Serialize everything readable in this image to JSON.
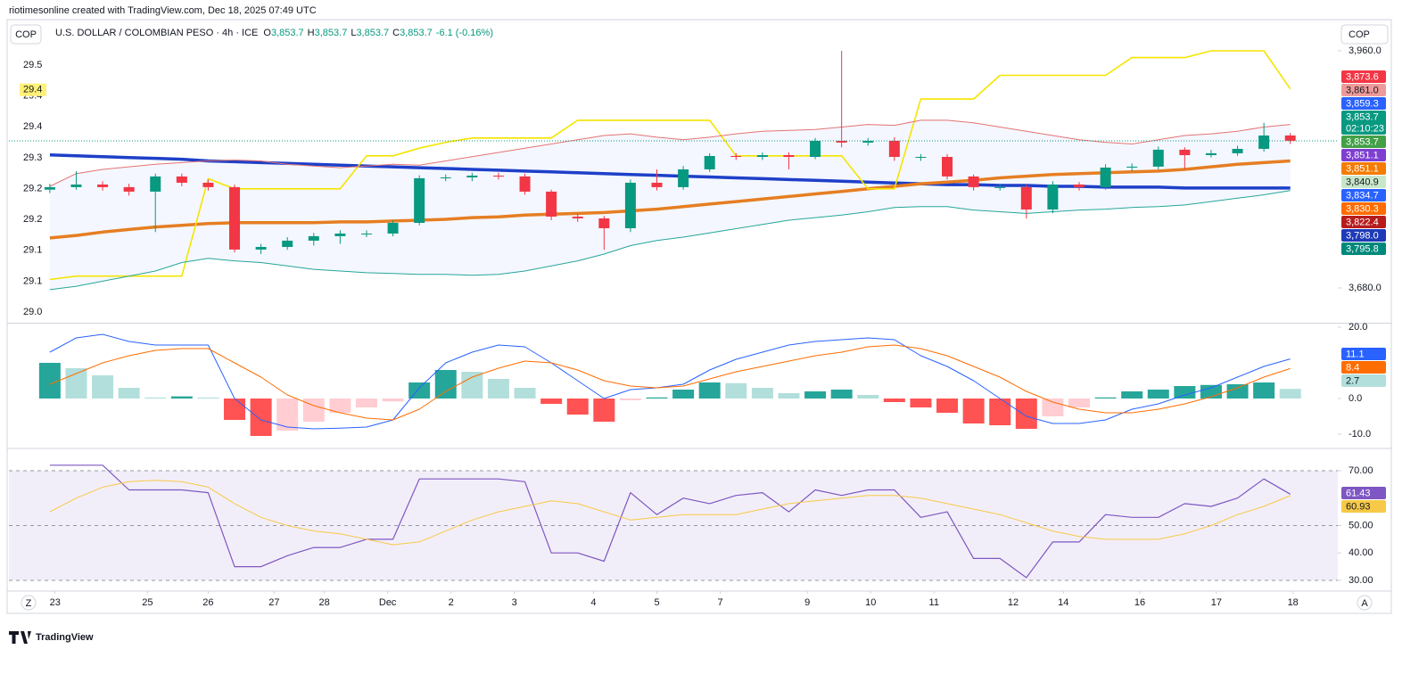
{
  "header": {
    "credit": "riotimesonline created with TradingView.com, Dec 18, 2025 07:49 UTC",
    "symbol_box": "COP",
    "instrument": "U.S. DOLLAR / COLOMBIAN PESO · 4h · ICE",
    "ohlc": [
      {
        "key": "O",
        "value": "3,853.7"
      },
      {
        "key": "H",
        "value": "3,853.7"
      },
      {
        "key": "L",
        "value": "3,853.7"
      },
      {
        "key": "C",
        "value": "3,853.7"
      }
    ],
    "change": "-6.1 (-0.16%)",
    "currency_box": "COP"
  },
  "footer": {
    "brand": "TradingView",
    "left_button": "Z",
    "right_button": "A"
  },
  "chart_data": [
    {
      "type": "candlestick",
      "xlim": [
        -1.55,
        48.8
      ],
      "ylim": [
        3641,
        3972.6
      ],
      "yticks": [
        {
          "value": 3680,
          "label": "3,680.0"
        },
        {
          "value": 3960,
          "label": "3,960.0"
        }
      ],
      "ylim_left": [
        28.982,
        29.5505
      ],
      "yticks_left": [
        29.5,
        {
          "value": 29.4375,
          "label": "29.4"
        },
        {
          "value": 29.375,
          "label": "29.4"
        },
        {
          "value": 29.3125,
          "label": "29.3"
        },
        {
          "value": 29.25,
          "label": "29.2"
        },
        {
          "value": 29.1875,
          "label": "29.2"
        },
        {
          "value": 29.125,
          "label": "29.1"
        },
        {
          "value": 29.0625,
          "label": "29.1"
        },
        {
          "value": 29,
          "label": "29.0"
        }
      ],
      "left_marker": {
        "value": 29.45,
        "label": "29.4",
        "color": "#fff176"
      },
      "up_color": "#089981",
      "down_color": "#f23645",
      "band_color": "#2962ff",
      "open": [
        3796.0,
        3799.0,
        3802.1,
        3799.0,
        3793.7,
        3811.6,
        3804.2,
        3799.0,
        3725.3,
        3728.4,
        3735.8,
        3741.1,
        3744.2,
        3744.2,
        3756.8,
        3809.5,
        3810.5,
        3812.6,
        3811.6,
        3793.7,
        3764.2,
        3762.1,
        3750.5,
        3804.2,
        3799.0,
        3820.0,
        3835.8,
        3834.7,
        3836.8,
        3834.7,
        3853.7,
        3851.6,
        3853.7,
        3834.7,
        3834.7,
        3811.6,
        3799.0,
        3799.0,
        3772.6,
        3802.1,
        3799.0,
        3822.1,
        3823.2,
        3843.2,
        3836.8,
        3839.0,
        3844.2,
        3860.0
      ],
      "high": [
        3803,
        3818,
        3806,
        3803,
        3815,
        3815,
        3808,
        3802,
        3732,
        3740,
        3745,
        3748,
        3748,
        3760,
        3813,
        3814,
        3816,
        3816,
        3815,
        3796,
        3768,
        3765,
        3808,
        3820,
        3824,
        3839,
        3839,
        3840,
        3840,
        3857,
        3960,
        3857,
        3858,
        3838,
        3838,
        3814,
        3803,
        3802,
        3806,
        3805,
        3826,
        3827,
        3847,
        3846,
        3843,
        3848,
        3875,
        3863
      ],
      "low": [
        3792,
        3796,
        3795,
        3789,
        3746,
        3800,
        3795,
        3722,
        3720,
        3725,
        3730,
        3732,
        3740,
        3741,
        3754,
        3806,
        3806,
        3808,
        3790,
        3760,
        3758,
        3725,
        3746,
        3795,
        3796,
        3817,
        3831,
        3831,
        3820,
        3832,
        3846,
        3848,
        3830,
        3830,
        3808,
        3795,
        3795,
        3762,
        3768,
        3795,
        3796,
        3818,
        3820,
        3820,
        3834,
        3836,
        3841,
        3850
      ],
      "close": [
        3799.0,
        3802.1,
        3799.0,
        3793.7,
        3811.6,
        3804.2,
        3799.0,
        3725.3,
        3728.4,
        3735.8,
        3741.1,
        3744.2,
        3744.2,
        3756.8,
        3809.5,
        3810.5,
        3812.6,
        3811.6,
        3793.7,
        3764.2,
        3762.1,
        3750.5,
        3804.2,
        3799.0,
        3820.0,
        3835.8,
        3834.7,
        3836.8,
        3834.7,
        3853.7,
        3851.6,
        3853.7,
        3834.7,
        3834.7,
        3811.6,
        3799.0,
        3799.0,
        3772.6,
        3802.1,
        3799.0,
        3822.1,
        3823.2,
        3843.2,
        3836.8,
        3839.0,
        3844.2,
        3860.0,
        3853.7
      ],
      "overlays": [
        {
          "color": "#1e40c8",
          "width": 3.5,
          "values": [
            3837,
            3836,
            3835,
            3834,
            3833,
            3832,
            3830,
            3829,
            3828,
            3827,
            3826,
            3825,
            3824,
            3823,
            3822,
            3821,
            3820,
            3819,
            3818,
            3817,
            3816,
            3815,
            3814,
            3813,
            3812,
            3811,
            3810,
            3809,
            3808,
            3807,
            3806,
            3805,
            3804,
            3803,
            3802,
            3802,
            3801,
            3801,
            3800,
            3800,
            3799,
            3799,
            3799,
            3798,
            3798,
            3798,
            3798,
            3798
          ]
        },
        {
          "color": "#e67e22",
          "width": 3.5,
          "values": [
            3739,
            3742,
            3746,
            3749,
            3752,
            3754,
            3756,
            3757,
            3757,
            3757,
            3757,
            3758,
            3758,
            3759,
            3760,
            3761,
            3763,
            3764,
            3766,
            3767,
            3768,
            3769,
            3771,
            3773,
            3776,
            3779,
            3782,
            3785,
            3788,
            3791,
            3794,
            3797,
            3800,
            3803,
            3805,
            3807,
            3810,
            3812,
            3814,
            3815,
            3816,
            3817,
            3818,
            3820,
            3823,
            3826,
            3828,
            3830
          ]
        },
        {
          "color": "#f5e400",
          "width": 1.6,
          "values": [
            3690,
            3694,
            3694,
            3694,
            3694,
            3694,
            3809,
            3797,
            3797,
            3797,
            3797,
            3797,
            3836,
            3836,
            3845,
            3852,
            3857,
            3857,
            3857,
            3857,
            3878,
            3878,
            3878,
            3878,
            3878,
            3878,
            3836,
            3836,
            3836,
            3836,
            3836,
            3797,
            3797,
            3903,
            3903,
            3903,
            3931,
            3931,
            3931,
            3931,
            3931,
            3952,
            3952,
            3952,
            3960,
            3960,
            3960,
            3915
          ]
        },
        {
          "color": "#e57373",
          "width": 1,
          "values": [
            3800,
            3815,
            3820,
            3823,
            3826,
            3828,
            3830,
            3831,
            3830,
            3826,
            3824,
            3822,
            3824,
            3826,
            3825,
            3830,
            3835,
            3840,
            3845,
            3850,
            3855,
            3860,
            3862,
            3858,
            3855,
            3858,
            3862,
            3865,
            3866,
            3867,
            3870,
            3873,
            3872,
            3878,
            3878,
            3875,
            3870,
            3865,
            3860,
            3855,
            3852,
            3850,
            3855,
            3860,
            3862,
            3865,
            3870,
            3873
          ]
        },
        {
          "color": "#26a69a",
          "width": 1,
          "values": [
            3678,
            3682,
            3688,
            3694,
            3700,
            3710,
            3715,
            3712,
            3710,
            3706,
            3702,
            3700,
            3698,
            3697,
            3696,
            3696,
            3695,
            3696,
            3700,
            3706,
            3712,
            3720,
            3730,
            3736,
            3740,
            3745,
            3750,
            3755,
            3760,
            3763,
            3766,
            3770,
            3775,
            3776,
            3776,
            3772,
            3770,
            3768,
            3770,
            3772,
            3773,
            3775,
            3776,
            3778,
            3782,
            3786,
            3790,
            3795
          ]
        }
      ],
      "price_line": {
        "value": 3853.7,
        "color": "#089981"
      },
      "badges": [
        {
          "label": "3,873.6",
          "color": "#f23645"
        },
        {
          "label": "3,861.0",
          "color": "#ef9a9a",
          "text_color": "#131722"
        },
        {
          "label": "3,859.3",
          "color": "#2962ff"
        },
        {
          "label": "3,853.7",
          "sub": "02:10:23",
          "color": "#089981"
        },
        {
          "label": "3,853.7",
          "color": "#43a047"
        },
        {
          "label": "3,851.1",
          "color": "#7e3fd1"
        },
        {
          "label": "3,851.1",
          "color": "#f57c00"
        },
        {
          "label": "3,840.9",
          "color": "#c8e6c9",
          "text_color": "#131722"
        },
        {
          "label": "3,834.7",
          "color": "#2962ff"
        },
        {
          "label": "3,830.3",
          "color": "#ff6d00"
        },
        {
          "label": "3,822.4",
          "color": "#b71c1c"
        },
        {
          "label": "3,798.0",
          "color": "#1e3ab8"
        },
        {
          "label": "3,795.8",
          "color": "#00897b"
        }
      ]
    },
    {
      "type": "bar",
      "xlim": [
        -1.55,
        48.8
      ],
      "ylim": [
        -13.25,
        20.5
      ],
      "yticks": [
        {
          "value": 20,
          "label": "20.0"
        },
        {
          "value": 0,
          "label": "0.0"
        },
        {
          "value": -10,
          "label": "-10.0"
        }
      ],
      "colors": {
        "pos_up": "#26a69a",
        "pos_down": "#b2dfdb",
        "neg_down": "#ff5252",
        "neg_up": "#ffcdd2"
      },
      "values": [
        10,
        8.5,
        6.5,
        3,
        0.3,
        0.6,
        0.3,
        -6,
        -10.5,
        -9,
        -6.5,
        -4,
        -2.5,
        -0.8,
        4.5,
        8,
        7.5,
        5.5,
        3,
        -1.5,
        -4.5,
        -6.5,
        -0.5,
        0.3,
        2.5,
        4.5,
        4.3,
        3,
        1.5,
        2,
        2.5,
        1,
        -1,
        -2.5,
        -4,
        -7,
        -7.5,
        -8.5,
        -5,
        -2.5,
        0.3,
        2,
        2.5,
        3.5,
        3.8,
        4,
        4.5,
        2.7
      ],
      "series": [
        {
          "color": "#2962ff",
          "values": [
            13,
            17,
            18,
            16,
            15,
            15,
            15,
            0,
            -6,
            -8,
            -8.5,
            -8.3,
            -8,
            -6,
            3,
            10,
            13,
            15,
            14.5,
            10,
            5,
            0,
            2.5,
            3,
            4,
            8,
            11,
            13,
            15,
            16,
            16.5,
            17,
            16.5,
            12,
            9,
            5,
            0,
            -5,
            -7,
            -7,
            -6,
            -3,
            -1.5,
            1,
            3,
            6,
            9,
            11.1
          ]
        },
        {
          "color": "#ff6d00",
          "values": [
            4,
            7,
            10,
            12,
            13.5,
            14,
            14,
            10,
            6,
            1,
            -2,
            -4,
            -5.5,
            -6,
            -3,
            2,
            6,
            8.5,
            10.5,
            10,
            8,
            5,
            3.5,
            3,
            3.5,
            5.5,
            7.5,
            9,
            10.5,
            12,
            13,
            14.5,
            15,
            14,
            12,
            9,
            6,
            2,
            -1,
            -3,
            -4,
            -4,
            -3,
            -1.5,
            0.5,
            3,
            6,
            8.4
          ]
        }
      ],
      "badges": [
        {
          "label": "11.1",
          "color": "#2962ff"
        },
        {
          "label": "8.4",
          "color": "#ff6d00"
        },
        {
          "label": "2.7",
          "color": "#b2dfdb",
          "text_color": "#131722"
        }
      ]
    },
    {
      "type": "line",
      "xlim": [
        -1.55,
        48.8
      ],
      "ylim": [
        27.07,
        77.15
      ],
      "yticks": [
        {
          "value": 70,
          "label": "70.00"
        },
        {
          "value": 50,
          "label": "50.00"
        },
        {
          "value": 40,
          "label": "40.00"
        },
        {
          "value": 30,
          "label": "30.00"
        }
      ],
      "levels": [
        70,
        50,
        30
      ],
      "band_color": "#7e57c2",
      "series": [
        {
          "color": "#7e57c2",
          "values": [
            72,
            72,
            72,
            63,
            63,
            63,
            62,
            35,
            35,
            39,
            42,
            42,
            45,
            45,
            67,
            67,
            67,
            67,
            66,
            40,
            40,
            37,
            62,
            54,
            60,
            58,
            61,
            62,
            55,
            63,
            61,
            63,
            63,
            53,
            55,
            38,
            38,
            31,
            44,
            44,
            54,
            53,
            53,
            58,
            57,
            60,
            67,
            61.43
          ]
        },
        {
          "color": "#f7c948",
          "values": [
            55,
            60,
            64,
            66,
            66.5,
            66,
            64,
            58,
            53,
            50,
            48,
            47,
            45,
            43,
            44,
            48,
            52,
            55,
            57,
            59,
            58,
            55,
            52,
            53,
            54,
            54,
            54,
            56,
            58,
            59,
            60,
            61,
            61,
            60,
            58,
            56,
            54,
            51,
            48,
            46,
            45,
            45,
            45,
            47,
            50,
            54,
            57,
            60.93
          ]
        }
      ],
      "badges": [
        {
          "label": "61.43",
          "color": "#7e57c2"
        },
        {
          "label": "60.93",
          "color": "#f7c948",
          "text_color": "#131722"
        }
      ],
      "xticks": [
        {
          "value": 0.2,
          "label": "23"
        },
        {
          "value": 3.7,
          "label": "25"
        },
        {
          "value": 6.0,
          "label": "26"
        },
        {
          "value": 8.5,
          "label": "27"
        },
        {
          "value": 10.4,
          "label": "28"
        },
        {
          "value": 12.8,
          "label": "Dec"
        },
        {
          "value": 15.2,
          "label": "2"
        },
        {
          "value": 17.6,
          "label": "3"
        },
        {
          "value": 20.6,
          "label": "4"
        },
        {
          "value": 23,
          "label": "5"
        },
        {
          "value": 25.4,
          "label": "7"
        },
        {
          "value": 28.7,
          "label": "9"
        },
        {
          "value": 31.1,
          "label": "10"
        },
        {
          "value": 33.5,
          "label": "11"
        },
        {
          "value": 36.5,
          "label": "12"
        },
        {
          "value": 38.4,
          "label": "14"
        },
        {
          "value": 41.3,
          "label": "16"
        },
        {
          "value": 44.2,
          "label": "17"
        },
        {
          "value": 47.1,
          "label": "18"
        }
      ]
    }
  ]
}
